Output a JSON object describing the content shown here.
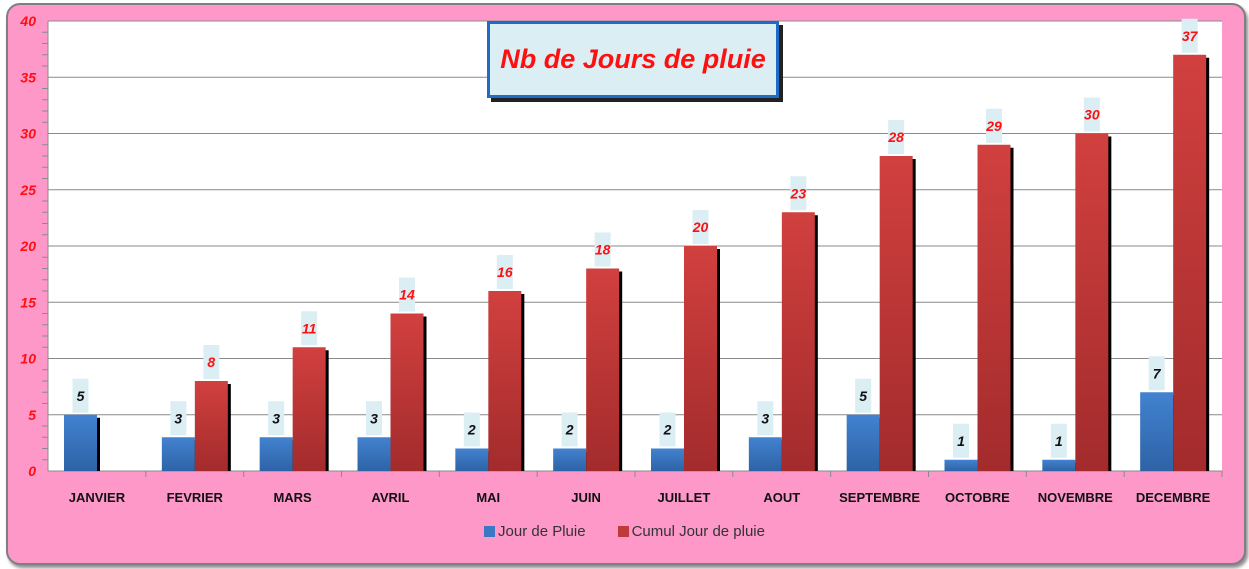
{
  "chart_data": {
    "type": "bar",
    "title": "Nb de Jours de pluie",
    "categories": [
      "JANVIER",
      "FEVRIER",
      "MARS",
      "AVRIL",
      "MAI",
      "JUIN",
      "JUILLET",
      "AOUT",
      "SEPTEMBRE",
      "OCTOBRE",
      "NOVEMBRE",
      "DECEMBRE"
    ],
    "series": [
      {
        "name": "Jour de Pluie",
        "color": "#3a78c3",
        "values": [
          5,
          3,
          3,
          3,
          2,
          2,
          2,
          3,
          5,
          1,
          1,
          7
        ]
      },
      {
        "name": "Cumul Jour de pluie",
        "color": "#c0393b",
        "values": [
          null,
          8,
          11,
          14,
          16,
          18,
          20,
          23,
          28,
          29,
          30,
          37
        ]
      }
    ],
    "ylim": [
      0,
      40
    ],
    "yticks": [
      0,
      5,
      10,
      15,
      20,
      25,
      30,
      35,
      40
    ],
    "grid": true,
    "legend": "bottom",
    "xlabel": "",
    "ylabel": ""
  }
}
